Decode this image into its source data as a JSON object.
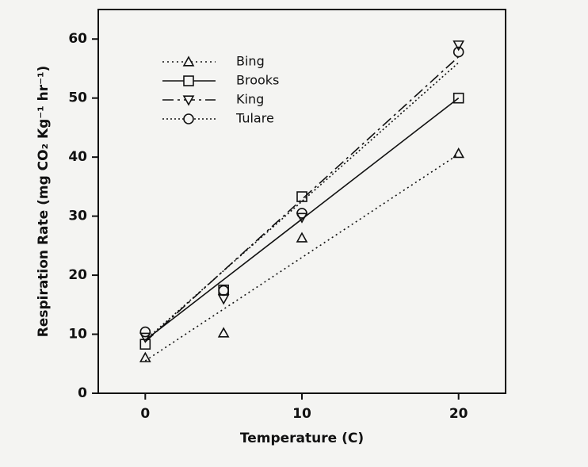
{
  "chart_data": {
    "type": "scatter",
    "x_label": "Temperature (C)",
    "y_label": "Respiration Rate (mg CO₂ Kg⁻¹ hr⁻¹)",
    "x": [
      0,
      5,
      10,
      20
    ],
    "fit_x": [
      0,
      20
    ],
    "xlim": [
      -3,
      23
    ],
    "ylim": [
      0,
      65
    ],
    "xticks": [
      0,
      10,
      20
    ],
    "yticks": [
      0,
      10,
      20,
      30,
      40,
      50,
      60
    ],
    "legend": "upper-left",
    "series": [
      {
        "name": "Bing",
        "color": "#111111",
        "marker": "triangle-up",
        "line_style": "dotted",
        "values": [
          6.0,
          10.2,
          26.3,
          40.6
        ],
        "fit": [
          5.5,
          40.5
        ]
      },
      {
        "name": "Brooks",
        "color": "#111111",
        "marker": "square",
        "line_style": "solid",
        "values": [
          8.3,
          17.5,
          33.3,
          50.0
        ],
        "fit": [
          9.0,
          50.0
        ]
      },
      {
        "name": "King",
        "color": "#111111",
        "marker": "triangle-down",
        "line_style": "dash-dot",
        "values": [
          9.5,
          16.0,
          29.8,
          59.0
        ],
        "fit": [
          8.7,
          57.0
        ]
      },
      {
        "name": "Tulare",
        "color": "#111111",
        "marker": "circle",
        "line_style": "short-dot",
        "values": [
          10.4,
          17.4,
          30.5,
          57.8
        ],
        "fit": [
          9.0,
          56.0
        ]
      }
    ]
  }
}
